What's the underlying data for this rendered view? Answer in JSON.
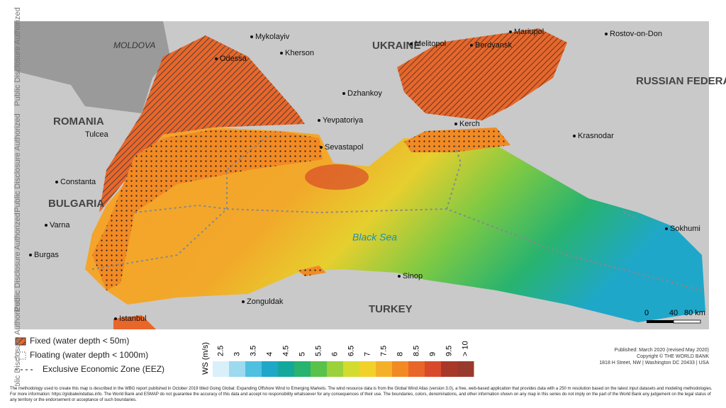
{
  "side_labels": [
    "Public Disclosure Authorized",
    "Public Disclosure Authorized",
    "Public Disclosure Authorized",
    "Public Disclosure Authorized"
  ],
  "places": [
    "MOLDOVA",
    "Mykolayiv",
    "Odessa",
    "Kherson",
    "UKRAINE",
    "Melitopol",
    "Berdyansk",
    "Mariupol",
    "Rostov-on-Don",
    "RUSSIAN FEDERATION",
    "Dzhankoy",
    "ROMANIA",
    "Tulcea",
    "Yevpatoriya",
    "Kerch",
    "Krasnodar",
    "Sevastapol",
    "Constanta",
    "BULGARIA",
    "Varna",
    "Black Sea",
    "Sokhumi",
    "Burgas",
    "Sinop",
    "Zonguldak",
    "TURKEY",
    "Istanbul"
  ],
  "scale_bar": [
    "0",
    "40",
    "80 km"
  ],
  "legend": [
    "Fixed (water depth < 50m)",
    "Floating (water depth < 1000m)",
    "Exclusive Economic Zone (EEZ)"
  ],
  "colorbar": {
    "label": "WS (m/s)",
    "ticks": [
      2.5,
      3,
      3.5,
      4,
      4.5,
      5,
      5.5,
      6,
      6.5,
      7,
      7.5,
      8,
      8.5,
      9,
      9.5,
      {
        "value": 10,
        "label": "> 10"
      }
    ],
    "colors": [
      "#d9f0fa",
      "#9dd9ef",
      "#4fc0e0",
      "#1fa7c9",
      "#14a89c",
      "#28b36f",
      "#59c24a",
      "#9bd13a",
      "#d3dc2e",
      "#f2d22a",
      "#f5b02a",
      "#f28a24",
      "#e8662a",
      "#d94a2a",
      "#a8392a",
      "#9a3a2e"
    ]
  },
  "published": [
    "Published: March 2020 (revised May 2020)",
    "Copyright © THE WORLD BANK",
    "1818 H Street, NW | Washington DC 20433 | USA"
  ],
  "footnote": "The methodology used to create this map is described in the WBG report published in October 2019 titled Going Global: Expanding Offshore Wind to Emerging Markets. The wind resource data is from the Global Wind Atlas (version 3.0), a free, web-based application that provides data with a 250 m resolution based on the latest input datasets and modeling methodologies. For more information: https://globalwindatlas.info. The World Bank and ESMAP do not guarantee the accuracy of this data and accept no responsibility whatsoever for any consequences of their use. The boundaries, colors, denominations, and other information shown on any map in this series do not imply on the part of the World Bank any judgement on the legal status of any territory or the endorsement or acceptance of such boundaries."
}
